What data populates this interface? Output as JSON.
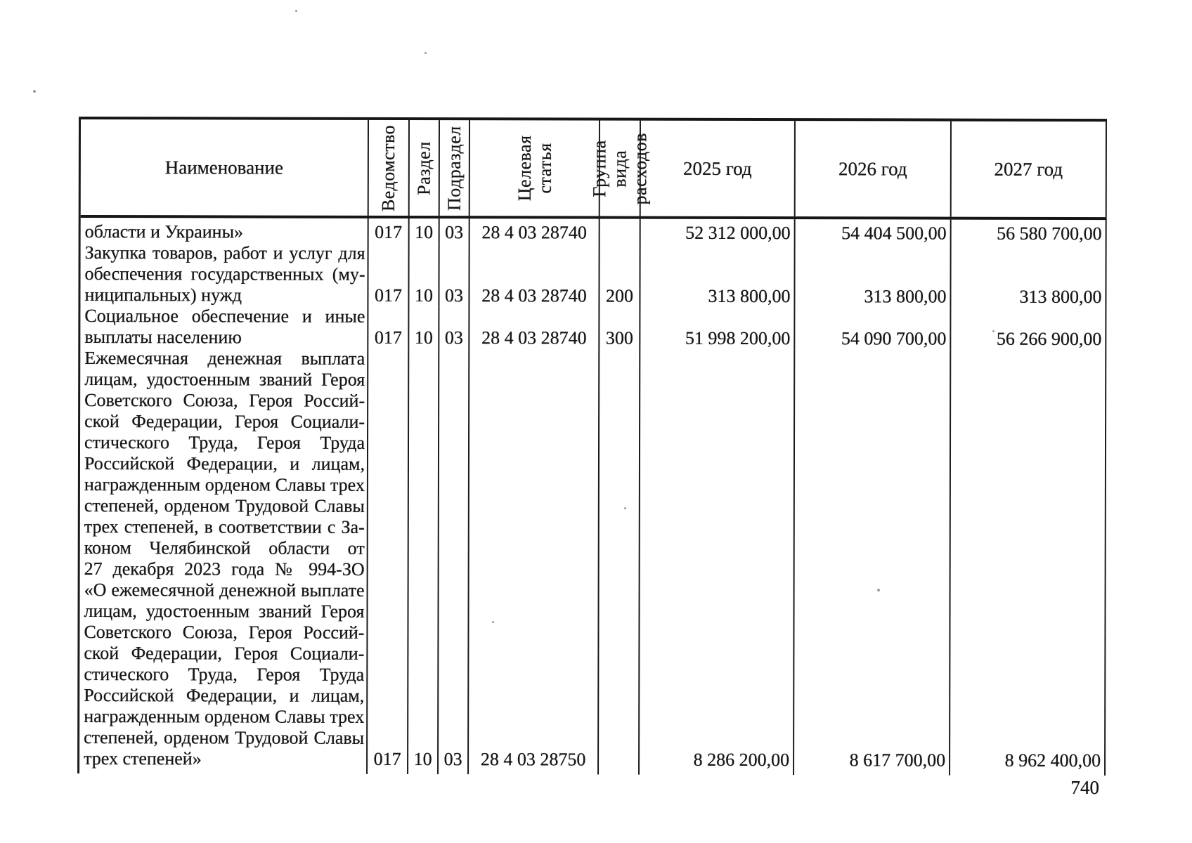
{
  "page": {
    "number": "740"
  },
  "table": {
    "header": {
      "name": "Наименование",
      "vedomstvo": "Ведомство",
      "razdel": "Раздел",
      "podrazdel": "Подраздел",
      "tselevaya": "Целевая статья",
      "gruppa": "Группа вида расходов",
      "y2025": "2025 год",
      "y2026": "2026 год",
      "y2027": "2027 год"
    },
    "rows": [
      {
        "name_lines": [
          "области и Украины»"
        ],
        "vedomstvo": "017",
        "razdel": "10",
        "podrazdel": "03",
        "tselevaya": "28 4 03 28740",
        "gruppa": "",
        "y2025": "52 312 000,00",
        "y2026": "54 404 500,00",
        "y2027": "56 580 700,00"
      },
      {
        "name_lines": [
          "Закупка товаров, работ и услуг для",
          "обеспечения государственных (му-",
          "ниципальных) нужд"
        ],
        "vedomstvo": "017",
        "razdel": "10",
        "podrazdel": "03",
        "tselevaya": "28 4 03 28740",
        "gruppa": "200",
        "y2025": "313 800,00",
        "y2026": "313 800,00",
        "y2027": "313 800,00"
      },
      {
        "name_lines": [
          "Социальное обеспечение и иные",
          "выплаты населению"
        ],
        "vedomstvo": "017",
        "razdel": "10",
        "podrazdel": "03",
        "tselevaya": "28 4 03 28740",
        "gruppa": "300",
        "y2025": "51 998 200,00",
        "y2026": "54 090 700,00",
        "y2027": "56 266 900,00"
      },
      {
        "name_lines": [
          "Ежемесячная денежная выплата",
          "лицам, удостоенным званий Героя",
          "Советского Союза, Героя Россий-",
          "ской Федерации, Героя Социали-",
          "стического Труда, Героя Труда",
          "Российской Федерации, и лицам,",
          "награжденным орденом Славы трех",
          "степеней, орденом Трудовой Славы",
          "трех степеней, в соответствии с За-",
          "коном Челябинской области от",
          "27 декабря 2023 года № 994-ЗО",
          "«О ежемесячной денежной выплате",
          "лицам, удостоенным званий Героя",
          "Советского Союза, Героя Россий-",
          "ской Федерации, Героя Социали-",
          "стического Труда, Героя Труда",
          "Российской Федерации, и лицам,",
          "награжденным орденом Славы трех",
          "степеней, орденом Трудовой Славы",
          "трех степеней»"
        ],
        "vedomstvo": "017",
        "razdel": "10",
        "podrazdel": "03",
        "tselevaya": "28 4 03 28750",
        "gruppa": "",
        "y2025": "8 286 200,00",
        "y2026": "8 617 700,00",
        "y2027": "8 962 400,00"
      }
    ]
  }
}
